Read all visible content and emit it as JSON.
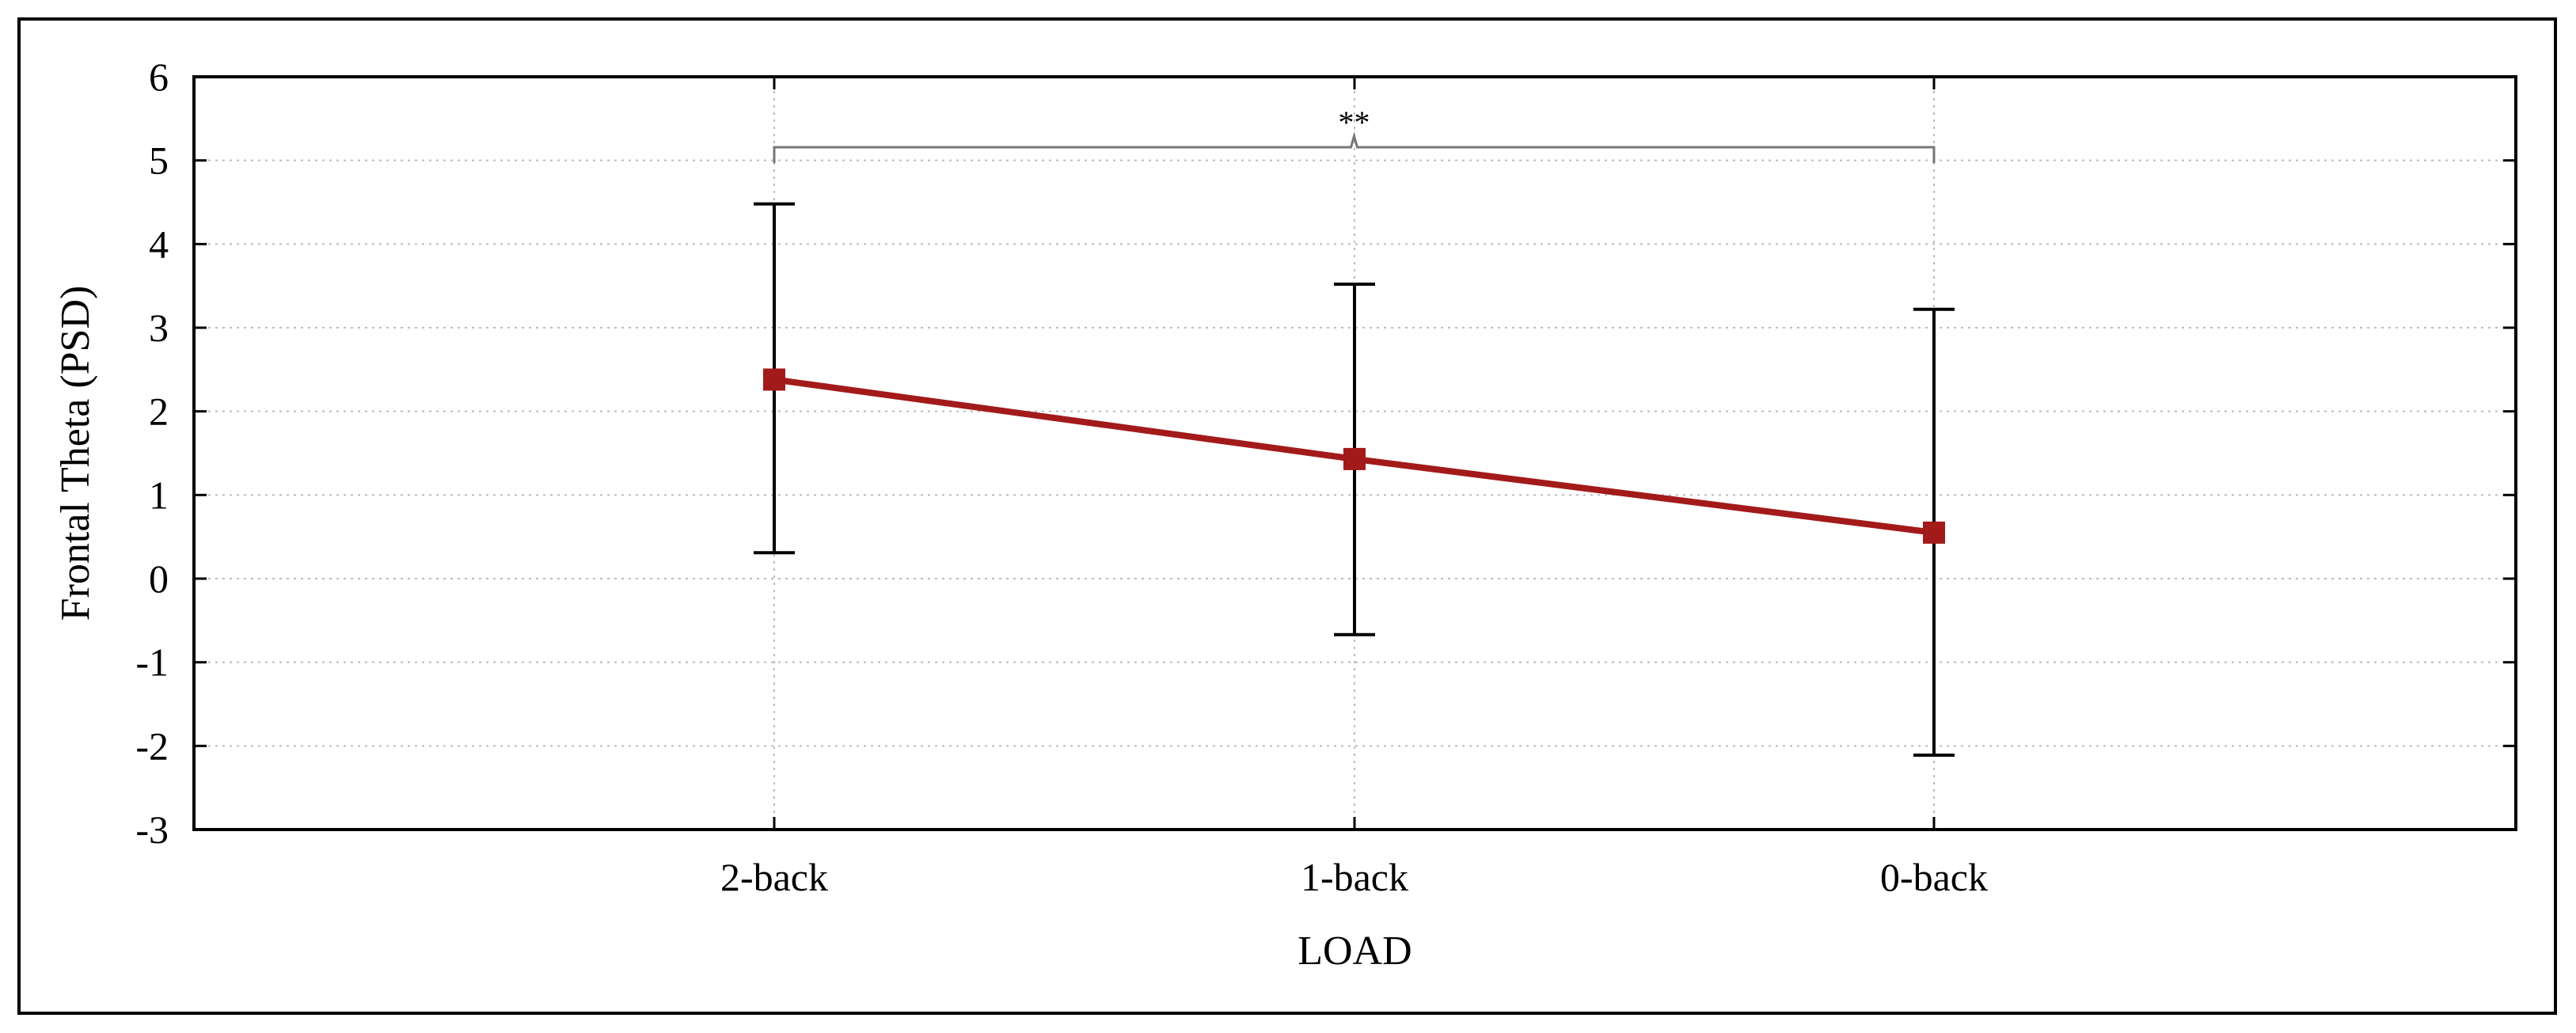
{
  "chart_data": {
    "type": "line",
    "title": "",
    "xlabel": "LOAD",
    "ylabel": "Frontal Theta (PSD)",
    "categories": [
      "2-back",
      "1-back",
      "0-back"
    ],
    "series": [
      {
        "values": [
          2.38,
          1.43,
          0.55
        ],
        "error_low": [
          0.31,
          -0.67,
          -2.11
        ],
        "error_high": [
          4.48,
          3.52,
          3.22
        ]
      }
    ],
    "ylim": [
      -3,
      6
    ],
    "yticks": [
      "-3",
      "-2",
      "-1",
      "0",
      "1",
      "2",
      "3",
      "4",
      "5",
      "6"
    ],
    "grid": true,
    "legend": "none",
    "significance": {
      "from_category": 0,
      "to_category": 2,
      "label": "**"
    },
    "colors": {
      "series": "#a31a1a",
      "errorbar": "#000000",
      "grid": "#bbbbbb",
      "bracket": "#777777"
    }
  }
}
